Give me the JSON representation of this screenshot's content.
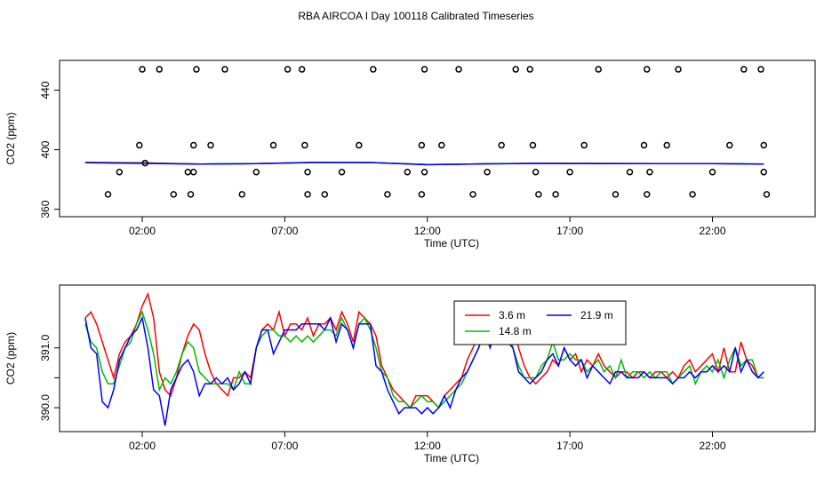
{
  "figure": {
    "title": "RBA AIRCOA I  Day 100118  Calibrated Timeseries"
  },
  "chart_data": [
    {
      "type": "scatter",
      "title": "",
      "xlabel": "Time (UTC)",
      "ylabel": "CO2 (ppm)",
      "xlim_hours": [
        -0.9,
        25.6
      ],
      "ylim": [
        355,
        460
      ],
      "x_ticks": [
        {
          "hour": 2,
          "label": "02:00"
        },
        {
          "hour": 7,
          "label": "07:00"
        },
        {
          "hour": 12,
          "label": "12:00"
        },
        {
          "hour": 17,
          "label": "17:00"
        },
        {
          "hour": 22,
          "label": "22:00"
        }
      ],
      "y_ticks": [
        {
          "value": 360,
          "label": "360"
        },
        {
          "value": 400,
          "label": "400"
        },
        {
          "value": 440,
          "label": "440"
        }
      ],
      "calibration_points": {
        "marker": "open-circle",
        "color": "#000000",
        "x": [
          0.8,
          1.9,
          2.0,
          2.1,
          1.2,
          2.6,
          3.1,
          3.6,
          3.8,
          3.9,
          3.8,
          3.7,
          4.4,
          4.9,
          5.5,
          6.0,
          6.6,
          7.1,
          7.6,
          7.7,
          7.8,
          7.8,
          8.4,
          9.0,
          9.6,
          10.1,
          10.6,
          11.3,
          11.8,
          11.9,
          11.9,
          11.8,
          12.5,
          13.1,
          13.6,
          14.1,
          14.6,
          15.1,
          15.6,
          15.7,
          15.8,
          15.9,
          16.5,
          17.0,
          17.5,
          18.0,
          18.6,
          19.1,
          19.6,
          19.7,
          19.8,
          19.7,
          20.4,
          20.8,
          21.3,
          22.0,
          22.6,
          23.1,
          23.7,
          23.8,
          23.8,
          23.9
        ],
        "y": [
          370,
          403,
          454,
          391,
          385,
          454,
          370,
          385,
          403,
          454,
          385,
          370,
          403,
          454,
          370,
          385,
          403,
          454,
          454,
          403,
          385,
          370,
          370,
          385,
          403,
          454,
          370,
          385,
          403,
          454,
          385,
          370,
          403,
          454,
          370,
          385,
          403,
          454,
          454,
          403,
          385,
          370,
          370,
          385,
          403,
          454,
          370,
          385,
          403,
          454,
          385,
          370,
          403,
          454,
          370,
          385,
          403,
          454,
          454,
          403,
          385,
          370
        ]
      },
      "series": [
        {
          "color": "#ff0000",
          "x": [
            0.0,
            2.0,
            4.0,
            6.0,
            8.0,
            10.0,
            12.0,
            14.0,
            16.0,
            18.0,
            20.0,
            22.0,
            23.8
          ],
          "y": [
            391.5,
            391.2,
            390.4,
            390.7,
            391.5,
            391.4,
            390.0,
            390.5,
            390.9,
            390.8,
            390.6,
            390.7,
            390.4
          ]
        },
        {
          "color": "#00bb00",
          "x": [
            0.0,
            2.0,
            4.0,
            6.0,
            8.0,
            10.0,
            12.0,
            14.0,
            16.0,
            18.0,
            20.0,
            22.0,
            23.8
          ],
          "y": [
            391.4,
            391.0,
            390.4,
            390.7,
            391.4,
            391.4,
            390.0,
            390.5,
            390.8,
            390.8,
            390.7,
            390.7,
            390.4
          ]
        },
        {
          "color": "#0000ff",
          "x": [
            0.0,
            2.0,
            4.0,
            6.0,
            8.0,
            10.0,
            12.0,
            14.0,
            16.0,
            18.0,
            20.0,
            22.0,
            23.8
          ],
          "y": [
            391.3,
            390.8,
            390.3,
            390.6,
            391.4,
            391.4,
            389.9,
            390.5,
            390.8,
            390.7,
            390.6,
            390.7,
            390.4
          ]
        }
      ]
    },
    {
      "type": "line",
      "title": "",
      "xlabel": "Time (UTC)",
      "ylabel": "CO2 (ppm)",
      "xlim_hours": [
        -0.9,
        25.6
      ],
      "ylim": [
        389.6,
        392.05
      ],
      "x_ticks": [
        {
          "hour": 2,
          "label": "02:00"
        },
        {
          "hour": 7,
          "label": "07:00"
        },
        {
          "hour": 12,
          "label": "12:00"
        },
        {
          "hour": 17,
          "label": "17:00"
        },
        {
          "hour": 22,
          "label": "22:00"
        }
      ],
      "y_ticks": [
        {
          "value": 390.0,
          "label": "390.0"
        },
        {
          "value": 390.5,
          "label": ""
        },
        {
          "value": 391.0,
          "label": "391.0"
        }
      ],
      "legend_position": "top-center",
      "series": [
        {
          "name": "3.6 m",
          "color": "#ff0000",
          "x": [
            0.0,
            0.2,
            0.4,
            0.6,
            0.8,
            1.0,
            1.2,
            1.4,
            1.6,
            1.8,
            2.0,
            2.2,
            2.4,
            2.6,
            2.8,
            3.0,
            3.2,
            3.4,
            3.6,
            3.8,
            4.0,
            4.2,
            4.4,
            4.6,
            4.8,
            5.0,
            5.2,
            5.4,
            5.6,
            5.8,
            6.0,
            6.2,
            6.4,
            6.6,
            6.8,
            7.0,
            7.2,
            7.4,
            7.6,
            7.8,
            8.0,
            8.2,
            8.4,
            8.6,
            8.8,
            9.0,
            9.2,
            9.4,
            9.6,
            9.8,
            10.0,
            10.2,
            10.4,
            10.6,
            10.8,
            11.0,
            11.2,
            11.4,
            11.6,
            11.8,
            12.0,
            12.2,
            12.4,
            12.6,
            12.8,
            13.0,
            13.2,
            13.4,
            13.6,
            13.8,
            14.0,
            14.2,
            14.4,
            14.6,
            14.8,
            15.0,
            15.2,
            15.4,
            15.6,
            15.8,
            16.0,
            16.2,
            16.4,
            16.6,
            16.8,
            17.0,
            17.2,
            17.4,
            17.6,
            17.8,
            18.0,
            18.2,
            18.4,
            18.6,
            18.8,
            19.0,
            19.2,
            19.4,
            19.6,
            19.8,
            20.0,
            20.2,
            20.4,
            20.6,
            20.8,
            21.0,
            21.2,
            21.4,
            21.6,
            21.8,
            22.0,
            22.2,
            22.4,
            22.6,
            22.8,
            23.0,
            23.2,
            23.4,
            23.6,
            23.8
          ],
          "y": [
            391.5,
            391.6,
            391.4,
            391.1,
            390.8,
            390.5,
            390.9,
            391.1,
            391.2,
            391.4,
            391.7,
            391.9,
            391.5,
            390.6,
            390.3,
            390.2,
            390.5,
            390.9,
            391.2,
            391.4,
            391.3,
            390.9,
            390.6,
            390.4,
            390.3,
            390.2,
            390.5,
            390.5,
            390.6,
            390.5,
            391.0,
            391.3,
            391.4,
            391.3,
            391.6,
            391.2,
            391.4,
            391.4,
            391.3,
            391.5,
            391.2,
            391.4,
            391.4,
            391.5,
            391.3,
            391.6,
            391.4,
            391.1,
            391.6,
            391.5,
            391.4,
            391.2,
            390.7,
            390.5,
            390.3,
            390.2,
            390.1,
            390.0,
            390.2,
            390.2,
            390.2,
            390.1,
            390.0,
            390.2,
            390.3,
            390.4,
            390.5,
            390.8,
            391.0,
            391.2,
            391.5,
            391.3,
            391.6,
            391.2,
            391.3,
            391.4,
            391.0,
            390.7,
            390.5,
            390.4,
            390.5,
            390.6,
            390.8,
            390.7,
            391.0,
            390.8,
            390.9,
            390.6,
            390.8,
            390.7,
            390.9,
            390.7,
            390.6,
            390.5,
            390.6,
            390.6,
            390.5,
            390.6,
            390.6,
            390.5,
            390.6,
            390.6,
            390.5,
            390.6,
            390.5,
            390.7,
            390.8,
            390.6,
            390.7,
            390.8,
            390.9,
            390.6,
            391.0,
            390.6,
            390.6,
            391.1,
            390.8,
            390.7,
            390.5,
            390.5
          ]
        },
        {
          "name": "14.8 m",
          "color": "#00bb00",
          "x": [
            0.0,
            0.2,
            0.4,
            0.6,
            0.8,
            1.0,
            1.2,
            1.4,
            1.6,
            1.8,
            2.0,
            2.2,
            2.4,
            2.6,
            2.8,
            3.0,
            3.2,
            3.4,
            3.6,
            3.8,
            4.0,
            4.2,
            4.4,
            4.6,
            4.8,
            5.0,
            5.2,
            5.4,
            5.6,
            5.8,
            6.0,
            6.2,
            6.4,
            6.6,
            6.8,
            7.0,
            7.2,
            7.4,
            7.6,
            7.8,
            8.0,
            8.2,
            8.4,
            8.6,
            8.8,
            9.0,
            9.2,
            9.4,
            9.6,
            9.8,
            10.0,
            10.2,
            10.4,
            10.6,
            10.8,
            11.0,
            11.2,
            11.4,
            11.6,
            11.8,
            12.0,
            12.2,
            12.4,
            12.6,
            12.8,
            13.0,
            13.2,
            13.4,
            13.6,
            13.8,
            14.0,
            14.2,
            14.4,
            14.6,
            14.8,
            15.0,
            15.2,
            15.4,
            15.6,
            15.8,
            16.0,
            16.2,
            16.4,
            16.6,
            16.8,
            17.0,
            17.2,
            17.4,
            17.6,
            17.8,
            18.0,
            18.2,
            18.4,
            18.6,
            18.8,
            19.0,
            19.2,
            19.4,
            19.6,
            19.8,
            20.0,
            20.2,
            20.4,
            20.6,
            20.8,
            21.0,
            21.2,
            21.4,
            21.6,
            21.8,
            22.0,
            22.2,
            22.4,
            22.6,
            22.8,
            23.0,
            23.2,
            23.4,
            23.6,
            23.8
          ],
          "y": [
            391.4,
            391.1,
            391.0,
            390.6,
            390.4,
            390.4,
            390.7,
            391.0,
            391.1,
            391.4,
            391.6,
            391.3,
            390.9,
            390.3,
            390.5,
            390.4,
            390.6,
            390.9,
            391.1,
            391.0,
            390.6,
            390.5,
            390.4,
            390.4,
            390.4,
            390.4,
            390.3,
            390.6,
            390.4,
            390.4,
            391.0,
            391.2,
            391.3,
            391.3,
            391.2,
            391.2,
            391.1,
            391.2,
            391.1,
            391.2,
            391.1,
            391.2,
            391.3,
            391.3,
            391.2,
            391.5,
            391.3,
            391.0,
            391.4,
            391.5,
            391.3,
            391.0,
            390.6,
            390.5,
            390.2,
            390.1,
            390.1,
            390.0,
            390.1,
            390.2,
            390.1,
            390.1,
            390.0,
            390.1,
            390.2,
            390.3,
            390.4,
            390.6,
            390.8,
            391.0,
            391.3,
            391.5,
            391.4,
            391.1,
            391.4,
            391.0,
            390.7,
            390.5,
            390.5,
            390.5,
            390.7,
            390.8,
            391.1,
            390.8,
            390.8,
            390.9,
            390.8,
            390.8,
            390.6,
            390.7,
            390.8,
            390.6,
            390.7,
            390.5,
            390.8,
            390.5,
            390.6,
            390.6,
            390.5,
            390.6,
            390.5,
            390.6,
            390.6,
            390.4,
            390.5,
            390.6,
            390.7,
            390.4,
            390.6,
            390.7,
            390.6,
            390.8,
            390.5,
            390.8,
            391.0,
            390.7,
            390.8,
            390.8,
            390.5,
            390.5
          ]
        },
        {
          "name": "21.9 m",
          "color": "#0000ff",
          "x": [
            0.0,
            0.2,
            0.4,
            0.6,
            0.8,
            1.0,
            1.2,
            1.4,
            1.6,
            1.8,
            2.0,
            2.2,
            2.4,
            2.6,
            2.8,
            3.0,
            3.2,
            3.4,
            3.6,
            3.8,
            4.0,
            4.2,
            4.4,
            4.6,
            4.8,
            5.0,
            5.2,
            5.4,
            5.6,
            5.8,
            6.0,
            6.2,
            6.4,
            6.6,
            6.8,
            7.0,
            7.2,
            7.4,
            7.6,
            7.8,
            8.0,
            8.2,
            8.4,
            8.6,
            8.8,
            9.0,
            9.2,
            9.4,
            9.6,
            9.8,
            10.0,
            10.2,
            10.4,
            10.6,
            10.8,
            11.0,
            11.2,
            11.4,
            11.6,
            11.8,
            12.0,
            12.2,
            12.4,
            12.6,
            12.8,
            13.0,
            13.2,
            13.4,
            13.6,
            13.8,
            14.0,
            14.2,
            14.4,
            14.6,
            14.8,
            15.0,
            15.2,
            15.4,
            15.6,
            15.8,
            16.0,
            16.2,
            16.4,
            16.6,
            16.8,
            17.0,
            17.2,
            17.4,
            17.6,
            17.8,
            18.0,
            18.2,
            18.4,
            18.6,
            18.8,
            19.0,
            19.2,
            19.4,
            19.6,
            19.8,
            20.0,
            20.2,
            20.4,
            20.6,
            20.8,
            21.0,
            21.2,
            21.4,
            21.6,
            21.8,
            22.0,
            22.2,
            22.4,
            22.6,
            22.8,
            23.0,
            23.2,
            23.4,
            23.6,
            23.8
          ],
          "y": [
            391.5,
            391.0,
            390.9,
            390.1,
            390.0,
            390.3,
            390.8,
            391.0,
            391.2,
            391.3,
            391.5,
            391.0,
            390.3,
            390.2,
            389.7,
            390.3,
            390.5,
            390.7,
            390.8,
            390.6,
            390.2,
            390.4,
            390.4,
            390.5,
            390.4,
            390.5,
            390.3,
            390.4,
            390.6,
            390.4,
            391.0,
            391.3,
            391.3,
            390.9,
            391.1,
            391.3,
            391.3,
            391.3,
            391.4,
            391.4,
            391.4,
            391.4,
            391.3,
            391.5,
            391.1,
            391.4,
            391.3,
            391.0,
            391.4,
            391.4,
            391.4,
            390.7,
            390.6,
            390.3,
            390.1,
            389.9,
            390.0,
            390.0,
            390.0,
            389.9,
            390.0,
            389.9,
            390.0,
            390.2,
            390.0,
            390.3,
            390.5,
            390.6,
            390.8,
            391.0,
            391.3,
            391.0,
            391.3,
            391.3,
            391.1,
            391.0,
            390.6,
            390.5,
            390.4,
            390.5,
            390.6,
            390.8,
            390.9,
            390.7,
            391.0,
            390.8,
            390.7,
            390.8,
            390.5,
            390.7,
            390.6,
            390.5,
            390.4,
            390.6,
            390.6,
            390.5,
            390.5,
            390.5,
            390.6,
            390.5,
            390.5,
            390.5,
            390.5,
            390.4,
            390.5,
            390.5,
            390.6,
            390.5,
            390.6,
            390.6,
            390.7,
            390.6,
            390.7,
            390.6,
            391.0,
            390.6,
            390.8,
            390.6,
            390.5,
            390.6
          ]
        }
      ]
    }
  ]
}
